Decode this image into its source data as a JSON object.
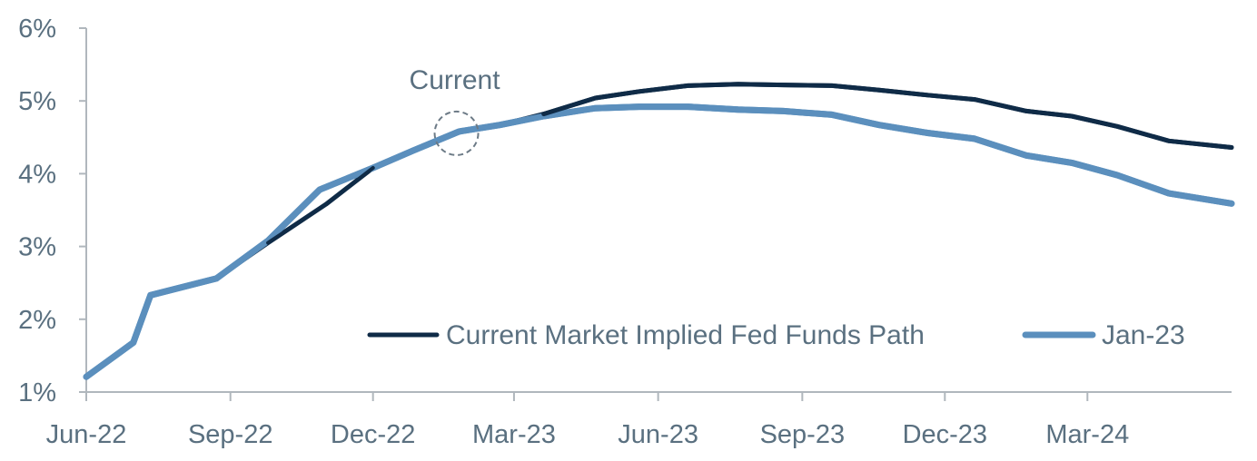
{
  "chart_data": {
    "type": "line",
    "title": "",
    "xlabel": "",
    "ylabel": "",
    "x_tick_labels": [
      "Jun-22",
      "Sep-22",
      "Dec-22",
      "Mar-23",
      "Jun-23",
      "Sep-23",
      "Dec-23",
      "Mar-24"
    ],
    "y_tick_labels": [
      "1%",
      "2%",
      "3%",
      "4%",
      "5%",
      "6%"
    ],
    "ylim": [
      1,
      6
    ],
    "xlim": [
      "2022-06-01",
      "2024-06-01"
    ],
    "grid": false,
    "legend_position": "bottom-right",
    "series": [
      {
        "name": "Current Market Implied Fed Funds Path",
        "color": "#0f2b47",
        "points": [
          [
            "2022-06-01",
            1.21
          ],
          [
            "2022-07-01",
            1.68
          ],
          [
            "2022-07-12",
            2.33
          ],
          [
            "2022-08-23",
            2.56
          ],
          [
            "2022-09-25",
            3.05
          ],
          [
            "2022-11-01",
            3.58
          ],
          [
            "2022-12-01",
            4.08
          ],
          [
            "2022-12-27",
            4.32
          ],
          [
            "2023-01-25",
            4.58
          ],
          [
            "2023-02-20",
            4.67
          ],
          [
            "2023-03-20",
            4.82
          ],
          [
            "2023-04-22",
            5.04
          ],
          [
            "2023-05-20",
            5.13
          ],
          [
            "2023-06-20",
            5.21
          ],
          [
            "2023-07-22",
            5.23
          ],
          [
            "2023-08-20",
            5.22
          ],
          [
            "2023-09-20",
            5.21
          ],
          [
            "2023-10-20",
            5.15
          ],
          [
            "2023-11-20",
            5.08
          ],
          [
            "2023-12-20",
            5.02
          ],
          [
            "2024-01-22",
            4.86
          ],
          [
            "2024-02-20",
            4.79
          ],
          [
            "2024-03-20",
            4.65
          ],
          [
            "2024-04-22",
            4.45
          ],
          [
            "2024-06-01",
            4.36
          ]
        ]
      },
      {
        "name": "Jan-23",
        "color": "#5b8fbd",
        "points": [
          [
            "2022-06-01",
            1.21
          ],
          [
            "2022-07-01",
            1.68
          ],
          [
            "2022-07-12",
            2.33
          ],
          [
            "2022-08-23",
            2.56
          ],
          [
            "2022-09-25",
            3.08
          ],
          [
            "2022-10-28",
            3.78
          ],
          [
            "2022-12-01",
            4.08
          ],
          [
            "2022-12-27",
            4.32
          ],
          [
            "2023-01-25",
            4.58
          ],
          [
            "2023-02-20",
            4.67
          ],
          [
            "2023-03-20",
            4.79
          ],
          [
            "2023-04-22",
            4.9
          ],
          [
            "2023-05-20",
            4.92
          ],
          [
            "2023-06-20",
            4.92
          ],
          [
            "2023-07-22",
            4.88
          ],
          [
            "2023-08-20",
            4.86
          ],
          [
            "2023-09-20",
            4.81
          ],
          [
            "2023-10-20",
            4.67
          ],
          [
            "2023-11-20",
            4.56
          ],
          [
            "2023-12-20",
            4.48
          ],
          [
            "2024-01-22",
            4.25
          ],
          [
            "2024-02-20",
            4.15
          ],
          [
            "2024-03-20",
            3.98
          ],
          [
            "2024-04-22",
            3.73
          ],
          [
            "2024-06-01",
            3.59
          ]
        ]
      }
    ],
    "annotations": [
      {
        "label": "Current",
        "x": "2023-01-25",
        "y": 4.58,
        "style": "dashed-circle"
      }
    ]
  },
  "colors": {
    "axis": "#b0b7bd",
    "tick_text": "#5a7080",
    "legend_text": "#5a7080",
    "annotation_circle": "#6c7a86"
  }
}
